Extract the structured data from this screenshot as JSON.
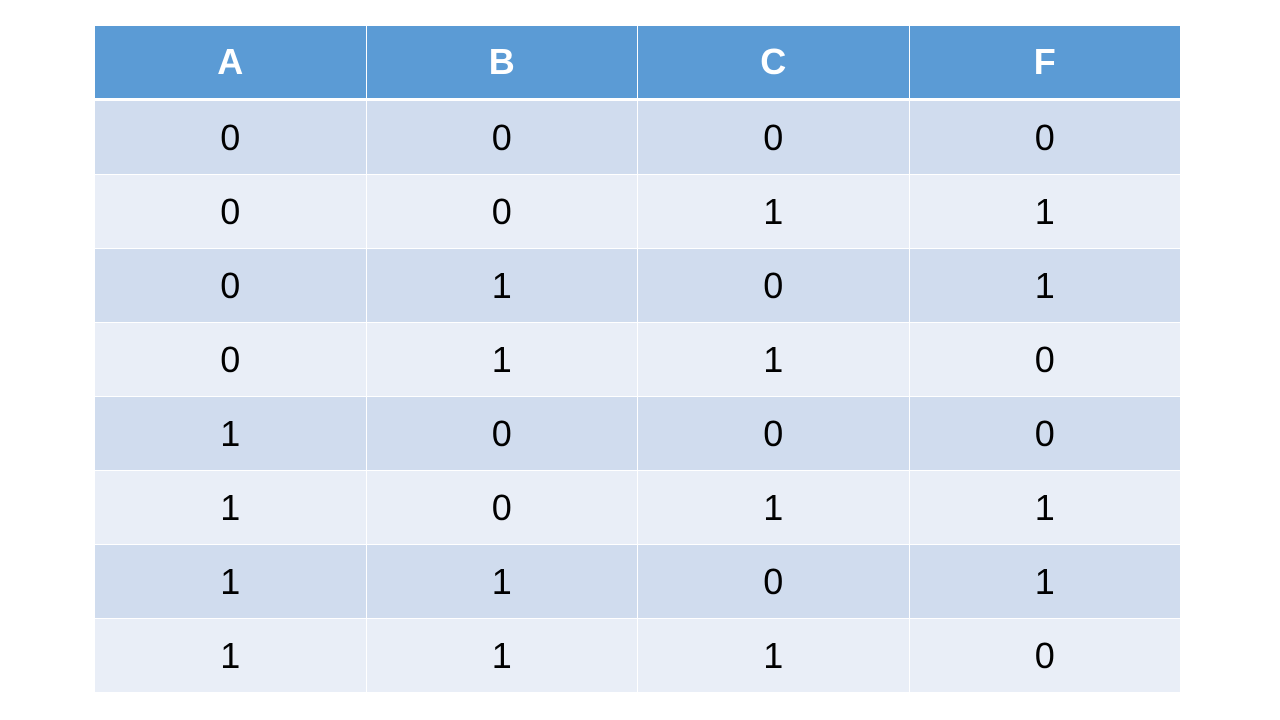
{
  "table": {
    "header": [
      "A",
      "B",
      "C",
      "F"
    ],
    "rows": [
      [
        0,
        0,
        0,
        0
      ],
      [
        0,
        0,
        1,
        1
      ],
      [
        0,
        1,
        0,
        1
      ],
      [
        0,
        1,
        1,
        0
      ],
      [
        1,
        0,
        0,
        0
      ],
      [
        1,
        0,
        1,
        1
      ],
      [
        1,
        1,
        0,
        1
      ],
      [
        1,
        1,
        1,
        0
      ]
    ]
  }
}
